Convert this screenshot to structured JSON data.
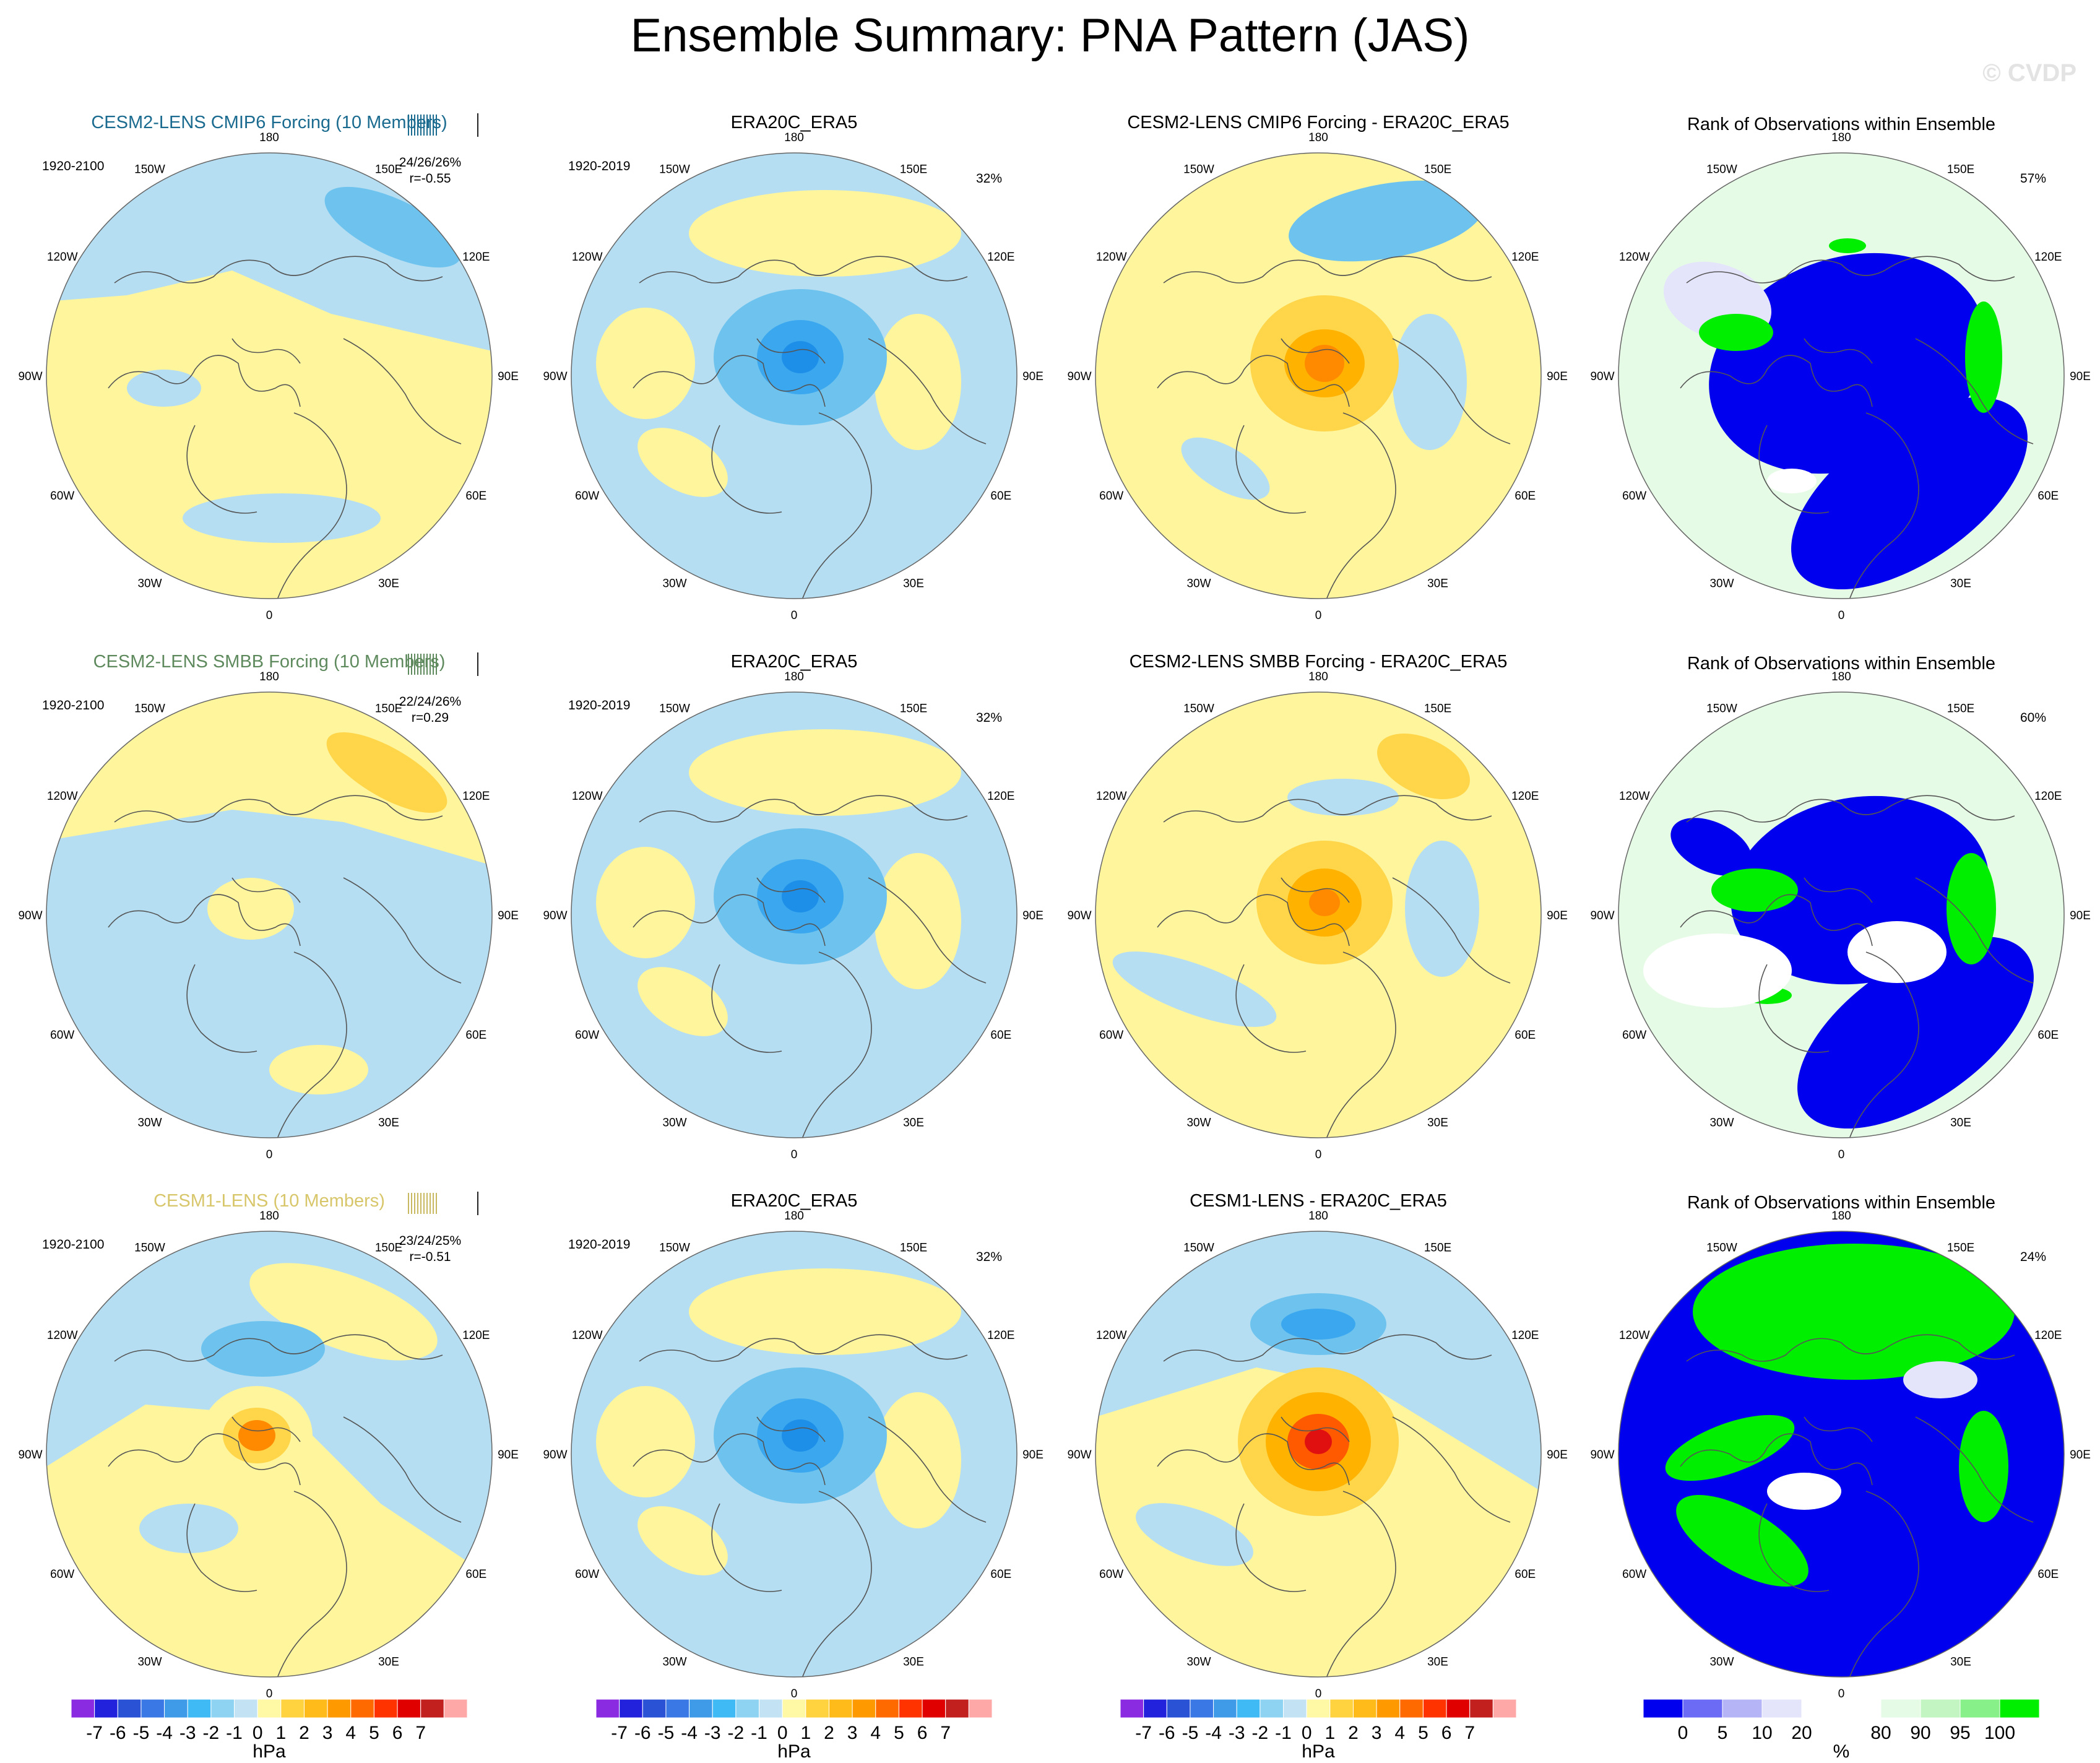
{
  "title": "Ensemble Summary: PNA Pattern (JAS)",
  "watermark": "© CVDP",
  "lon_labels": [
    "180",
    "150E",
    "120E",
    "90E",
    "60E",
    "30E",
    "0",
    "30W",
    "60W",
    "90W",
    "120W",
    "150W"
  ],
  "rows": [
    {
      "model": {
        "title": "CESM2-LENS CMIP6 Forcing (10 Members)",
        "title_color": "#1a6b8f",
        "years": "1920-2100",
        "stats": "24/26/26%",
        "corr": "r=-0.55",
        "tick_color": "#1a6b8f"
      },
      "obs": {
        "title": "ERA20C_ERA5",
        "years": "1920-2019",
        "pct": "32%"
      },
      "diff": {
        "title": "CESM2-LENS CMIP6 Forcing - ERA20C_ERA5"
      },
      "rank": {
        "title": "Rank of Observations within Ensemble",
        "pct": "57%"
      }
    },
    {
      "model": {
        "title": "CESM2-LENS SMBB Forcing (10 Members)",
        "title_color": "#5e8a5e",
        "years": "1920-2100",
        "stats": "22/24/26%",
        "corr": "r=0.29",
        "tick_color": "#5e8a5e"
      },
      "obs": {
        "title": "ERA20C_ERA5",
        "years": "1920-2019",
        "pct": "32%"
      },
      "diff": {
        "title": "CESM2-LENS SMBB Forcing - ERA20C_ERA5"
      },
      "rank": {
        "title": "Rank of Observations within Ensemble",
        "pct": "60%"
      }
    },
    {
      "model": {
        "title": "CESM1-LENS (10 Members)",
        "title_color": "#d8c66a",
        "years": "1920-2100",
        "stats": "23/24/25%",
        "corr": "r=-0.51",
        "tick_color": "#c8b860"
      },
      "obs": {
        "title": "ERA20C_ERA5",
        "years": "1920-2019",
        "pct": "32%"
      },
      "diff": {
        "title": "CESM1-LENS - ERA20C_ERA5"
      },
      "rank": {
        "title": "Rank of Observations within Ensemble",
        "pct": "24%"
      }
    }
  ],
  "colorbar_hpa": {
    "colors": [
      "#8a2be2",
      "#2222dd",
      "#2a52d4",
      "#3a78e6",
      "#3f9be8",
      "#3fbaf5",
      "#8fd3f2",
      "#c3e3f5",
      "#fff9a6",
      "#ffd23f",
      "#ffbb1a",
      "#ff9900",
      "#ff6a00",
      "#ff3300",
      "#e00000",
      "#c21f1f",
      "#ffa8a8"
    ],
    "labels": [
      "-7",
      "-6",
      "-5",
      "-4",
      "-3",
      "-2",
      "-1",
      "0",
      "1",
      "2",
      "3",
      "4",
      "5",
      "6",
      "7"
    ],
    "unit": "hPa"
  },
  "colorbar_rank": {
    "colors": [
      "#0000ee",
      "#6b6bf5",
      "#b4b4f7",
      "#e4e4fa",
      "#ffffff",
      "#ffffff",
      "#e6fbe6",
      "#c2f5c2",
      "#88f088",
      "#00ee00"
    ],
    "labels": [
      "0",
      "5",
      "10",
      "20",
      "80",
      "90",
      "95",
      "100"
    ],
    "unit": "%"
  }
}
